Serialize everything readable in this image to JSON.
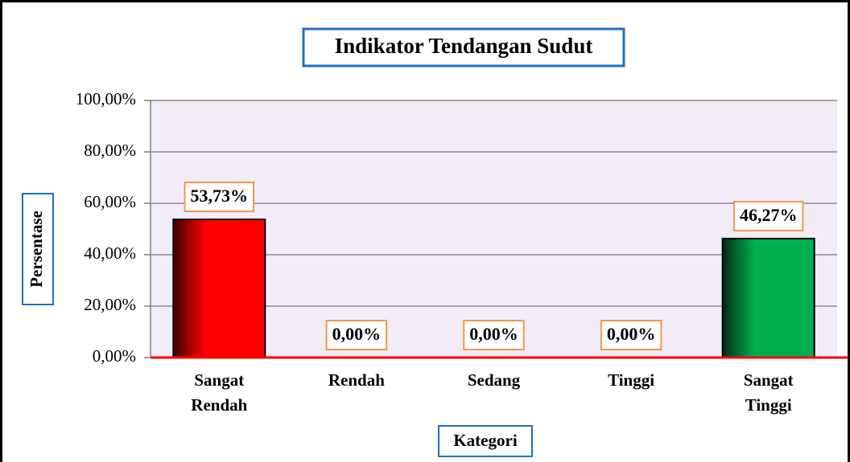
{
  "chart_data": {
    "type": "bar",
    "title": "Indikator Tendangan Sudut",
    "x_label": "Kategori",
    "y_label": "Persentase",
    "categories": [
      "Sangat Rendah",
      "Rendah",
      "Sedang",
      "Tinggi",
      "Sangat Tinggi"
    ],
    "values": [
      53.73,
      0,
      0,
      0,
      46.27
    ],
    "value_labels": [
      "53,73%",
      "0,00%",
      "0,00%",
      "0,00%",
      "46,27%"
    ],
    "colors": [
      "#ff0000",
      "#ff0000",
      "#ff0000",
      "#00b050",
      "#00b050"
    ],
    "ylim": [
      0,
      100
    ],
    "yticks": [
      {
        "value": 0,
        "label": "0,00%"
      },
      {
        "value": 20,
        "label": "20,00%"
      },
      {
        "value": 40,
        "label": "40,00%"
      },
      {
        "value": 60,
        "label": "60,00%"
      },
      {
        "value": 80,
        "label": "80,00%"
      },
      {
        "value": 100,
        "label": "100,00%"
      }
    ],
    "grid": true
  }
}
